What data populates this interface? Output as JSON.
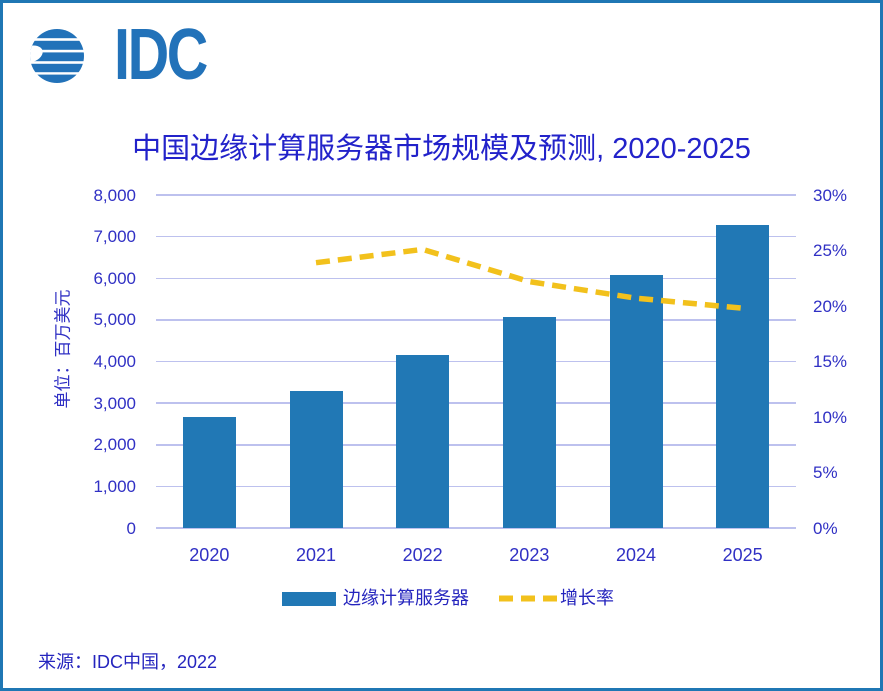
{
  "logo": {
    "text": "IDC"
  },
  "title": "中国边缘计算服务器市场规模及预测, 2020-2025",
  "source": "来源：IDC中国，2022",
  "chart_data": {
    "type": "combo-bar-line",
    "title": "中国边缘计算服务器市场规模及预测, 2020-2025",
    "categories": [
      "2020",
      "2021",
      "2022",
      "2023",
      "2024",
      "2025"
    ],
    "series": [
      {
        "name": "边缘计算服务器",
        "type": "bar",
        "axis": "left",
        "color": "#2178B5",
        "values": [
          2660,
          3300,
          4150,
          5060,
          6090,
          7290
        ]
      },
      {
        "name": "增长率",
        "type": "line",
        "axis": "right",
        "color": "#F2C11C",
        "line_style": "dashed",
        "values": [
          null,
          23.9,
          25.1,
          22.2,
          20.7,
          19.8
        ]
      }
    ],
    "left_axis": {
      "title": "单位：百万美元",
      "min": 0,
      "max": 8000,
      "step": 1000,
      "tick_labels": [
        "8,000",
        "7,000",
        "6,000",
        "5,000",
        "4,000",
        "3,000",
        "2,000",
        "1,000",
        "0"
      ]
    },
    "right_axis": {
      "min": 0,
      "max": 30,
      "step": 5,
      "tick_labels": [
        "30%",
        "25%",
        "20%",
        "15%",
        "10%",
        "5%",
        "0%"
      ]
    },
    "x_axis": {
      "tick_labels": [
        "2020",
        "2021",
        "2022",
        "2023",
        "2024",
        "2025"
      ]
    },
    "grid": {
      "horizontal": true,
      "color": "#BDC1EE"
    },
    "legend": {
      "position": "bottom",
      "items": [
        {
          "label": "边缘计算服务器",
          "swatch": "bar",
          "color": "#2178B5"
        },
        {
          "label": "增长率",
          "swatch": "dashed-line",
          "color": "#F2C11C"
        }
      ]
    }
  },
  "colors": {
    "border": "#1F77B4",
    "logo": "#2272B9",
    "tick_text": "#3030C4",
    "title_text": "#2222CA"
  }
}
